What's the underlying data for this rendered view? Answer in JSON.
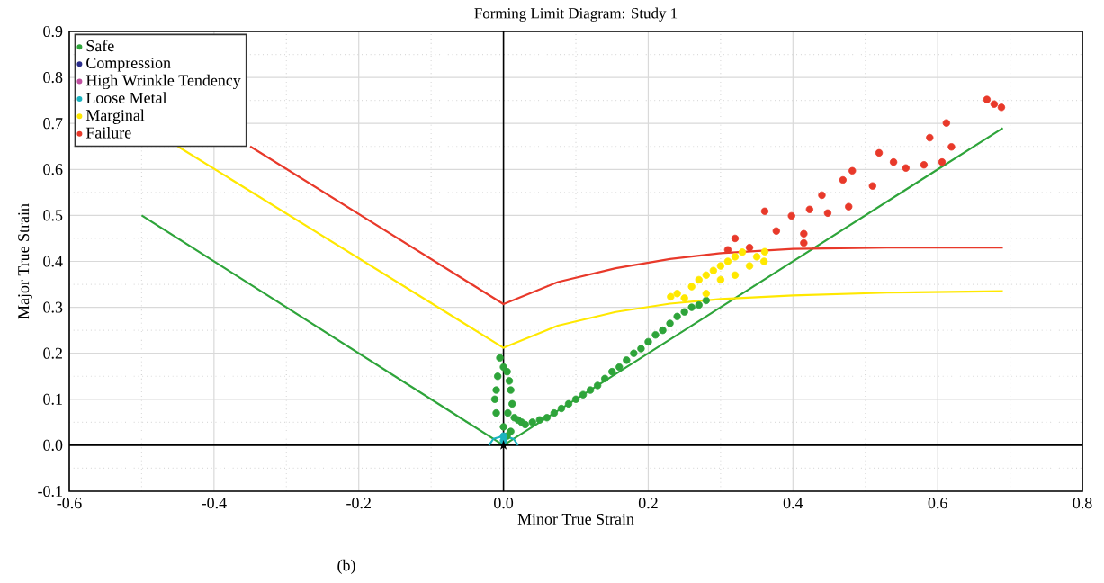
{
  "chart_data": {
    "type": "scatter",
    "title": "Forming Limit Diagram: Study 1",
    "xlabel": "Minor True Strain",
    "ylabel": "Major True Strain",
    "annotations": [
      "(b)"
    ],
    "xlim": [
      -0.6,
      0.8
    ],
    "ylim": [
      -0.1,
      0.9
    ],
    "xticks": [
      -0.6,
      -0.4,
      -0.2,
      {
        "value": 0,
        "label": "0.0"
      },
      0.2,
      0.4,
      0.6,
      0.8
    ],
    "yticks": [
      -0.1,
      {
        "value": 0,
        "label": "0.0"
      },
      0.1,
      0.2,
      0.3,
      0.4,
      0.5,
      0.6,
      0.7,
      0.8,
      0.9
    ],
    "grid": true,
    "legend": "top left",
    "marker": "circle",
    "series": [
      {
        "name": "Safe",
        "color": "#2ea43a",
        "x": [
          -0.005,
          0.0,
          0.005,
          -0.008,
          0.008,
          -0.01,
          0.01,
          -0.012,
          0.012,
          -0.01,
          0.006,
          0.0,
          0.01,
          0.015,
          0.02,
          0.025,
          0.03,
          0.04,
          0.05,
          0.06,
          0.07,
          0.08,
          0.09,
          0.1,
          0.11,
          0.12,
          0.13,
          0.14,
          0.15,
          0.16,
          0.17,
          0.18,
          0.19,
          0.2,
          0.21,
          0.22,
          0.23,
          0.24,
          0.25,
          0.26,
          0.27,
          0.28,
          0.005
        ],
        "values": [
          0.19,
          0.17,
          0.16,
          0.15,
          0.14,
          0.12,
          0.12,
          0.1,
          0.09,
          0.07,
          0.07,
          0.04,
          0.03,
          0.06,
          0.055,
          0.05,
          0.045,
          0.05,
          0.055,
          0.06,
          0.07,
          0.08,
          0.09,
          0.1,
          0.11,
          0.12,
          0.13,
          0.145,
          0.16,
          0.17,
          0.185,
          0.2,
          0.21,
          0.225,
          0.24,
          0.25,
          0.265,
          0.28,
          0.29,
          0.3,
          0.305,
          0.315,
          0.02
        ]
      },
      {
        "name": "Compression",
        "color": "#2b2d8c"
      },
      {
        "name": "High Wrinkle Tendency",
        "color": "#c050a0"
      },
      {
        "name": "Loose Metal",
        "color": "#1ab3c0",
        "x": [
          0.0,
          0.0
        ],
        "values": [
          0.01,
          0.02
        ]
      },
      {
        "name": "Marginal",
        "color": "#ffe800",
        "x": [
          0.231,
          0.24,
          0.25,
          0.26,
          0.27,
          0.28,
          0.28,
          0.29,
          0.3,
          0.3,
          0.31,
          0.32,
          0.32,
          0.33,
          0.34,
          0.35,
          0.361,
          0.36
        ],
        "values": [
          0.323,
          0.33,
          0.32,
          0.345,
          0.36,
          0.33,
          0.37,
          0.38,
          0.36,
          0.39,
          0.4,
          0.37,
          0.41,
          0.42,
          0.39,
          0.41,
          0.421,
          0.4
        ]
      },
      {
        "name": "Failure",
        "color": "#e8392a",
        "x": [
          0.31,
          0.32,
          0.34,
          0.361,
          0.377,
          0.398,
          0.415,
          0.415,
          0.423,
          0.44,
          0.448,
          0.469,
          0.477,
          0.482,
          0.51,
          0.519,
          0.539,
          0.556,
          0.581,
          0.589,
          0.606,
          0.612,
          0.619,
          0.668,
          0.678,
          0.688
        ],
        "values": [
          0.425,
          0.45,
          0.43,
          0.509,
          0.466,
          0.499,
          0.46,
          0.44,
          0.513,
          0.544,
          0.505,
          0.577,
          0.519,
          0.597,
          0.564,
          0.636,
          0.616,
          0.603,
          0.61,
          0.669,
          0.616,
          0.701,
          0.649,
          0.752,
          0.742,
          0.735
        ]
      },
      {
        "type": "line",
        "color": "#2ea43a",
        "marker": "none",
        "x": [
          -0.5,
          0.0,
          0.69
        ],
        "values": [
          0.5,
          0.0,
          0.69
        ]
      },
      {
        "type": "line",
        "color": "#ffe800",
        "marker": "none",
        "x": [
          -0.45,
          0.0,
          0.075,
          0.155,
          0.23,
          0.3,
          0.4,
          0.53,
          0.69
        ],
        "values": [
          0.65,
          0.212,
          0.26,
          0.29,
          0.308,
          0.318,
          0.326,
          0.332,
          0.335
        ]
      },
      {
        "type": "line",
        "color": "#e8392a",
        "marker": "none",
        "x": [
          -0.35,
          0.0,
          0.075,
          0.155,
          0.23,
          0.3,
          0.4,
          0.53,
          0.69
        ],
        "values": [
          0.65,
          0.307,
          0.355,
          0.385,
          0.405,
          0.418,
          0.427,
          0.43,
          0.43
        ]
      },
      {
        "type": "line",
        "color": "#1ab3c0",
        "marker": "none",
        "x": [
          -0.02,
          -0.014,
          0.0,
          0.014,
          0.02
        ],
        "values": [
          0.0,
          0.014,
          0.02,
          0.014,
          0.0
        ]
      },
      {
        "color": "#000000",
        "marker": "star",
        "x": [
          0.0
        ],
        "values": [
          0.0
        ]
      }
    ]
  }
}
